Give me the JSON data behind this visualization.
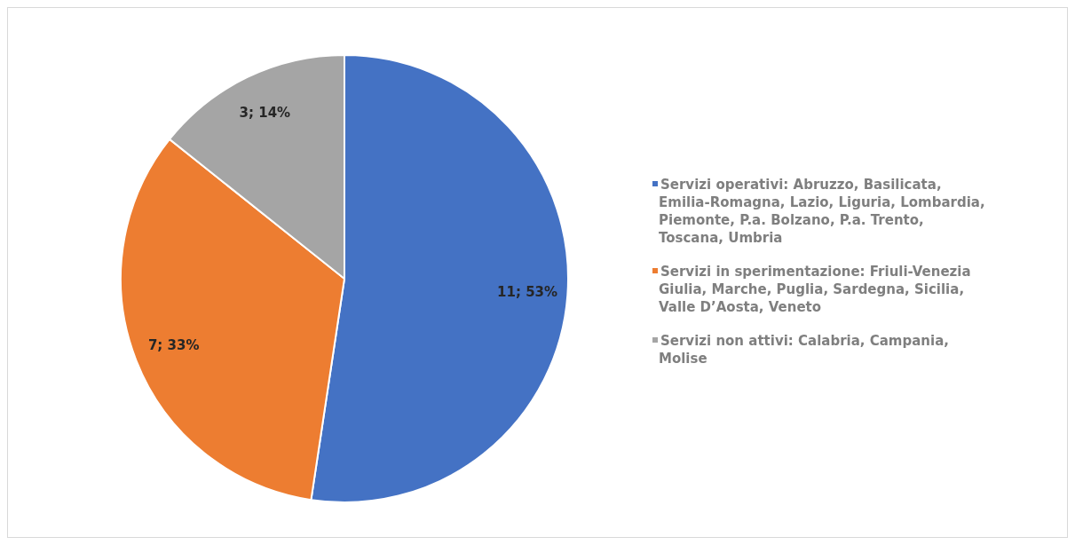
{
  "chart_data": {
    "type": "pie",
    "legend": "right",
    "categories": [
      "Servizi operativi: Abruzzo, Basilicata, Emilia-Romagna, Lazio, Liguria, Lombardia, Piemonte, P.a. Bolzano, P.a. Trento, Toscana, Umbria",
      "Servizi in sperimentazione: Friuli-Venezia Giulia, Marche, Puglia, Sardegna, Sicilia, Valle D’Aosta, Veneto",
      "Servizi non attivi: Calabria, Campania, Molise"
    ],
    "values": [
      11,
      7,
      3
    ],
    "colors": [
      "#4472c4",
      "#ed7d31",
      "#a5a5a5"
    ],
    "value_labels": [
      "11; 53%",
      "7; 33%",
      "3; 14%"
    ]
  }
}
